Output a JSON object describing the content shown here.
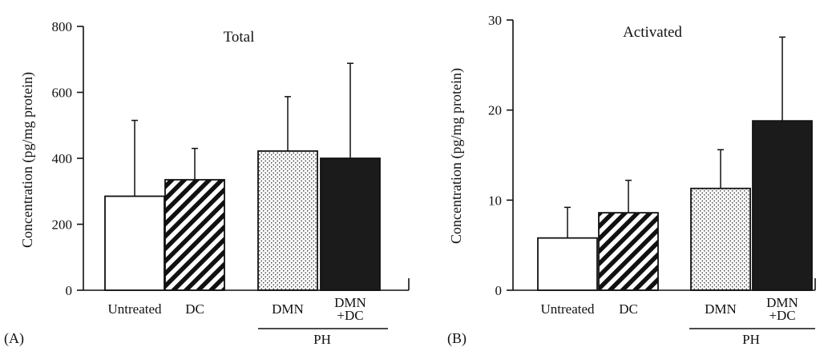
{
  "chart_data": [
    {
      "type": "bar",
      "panel_label": "(A)",
      "title": "Total",
      "ylabel": "Concentration (pg/mg protein)",
      "xlabel": "",
      "ylim": [
        0,
        800
      ],
      "yticks": [
        "0",
        "200",
        "400",
        "600",
        "800"
      ],
      "categories": [
        "Untreated",
        "DC",
        "DMN",
        "DMN +DC"
      ],
      "category_lines": [
        [
          "Untreated"
        ],
        [
          "DC"
        ],
        [
          "DMN"
        ],
        [
          "DMN",
          "+DC"
        ]
      ],
      "values": [
        285,
        335,
        422,
        400
      ],
      "errors": [
        230,
        95,
        165,
        288
      ],
      "fills": [
        "white",
        "hatch",
        "dots",
        "solid"
      ],
      "group_label": "PH",
      "group_members": [
        "DMN",
        "DMN +DC"
      ],
      "grid": false
    },
    {
      "type": "bar",
      "panel_label": "(B)",
      "title": "Activated",
      "ylabel": "Concentration (pg/mg protein)",
      "xlabel": "",
      "ylim": [
        0,
        30
      ],
      "yticks": [
        "0",
        "10",
        "20",
        "30"
      ],
      "categories": [
        "Untreated",
        "DC",
        "DMN",
        "DMN +DC"
      ],
      "category_lines": [
        [
          "Untreated"
        ],
        [
          "DC"
        ],
        [
          "DMN"
        ],
        [
          "DMN",
          "+DC"
        ]
      ],
      "values": [
        5.8,
        8.6,
        11.3,
        18.8
      ],
      "errors": [
        3.4,
        3.6,
        4.3,
        9.3
      ],
      "fills": [
        "white",
        "hatch",
        "dots",
        "solid"
      ],
      "group_label": "PH",
      "group_members": [
        "DMN",
        "DMN +DC"
      ],
      "grid": false
    }
  ]
}
